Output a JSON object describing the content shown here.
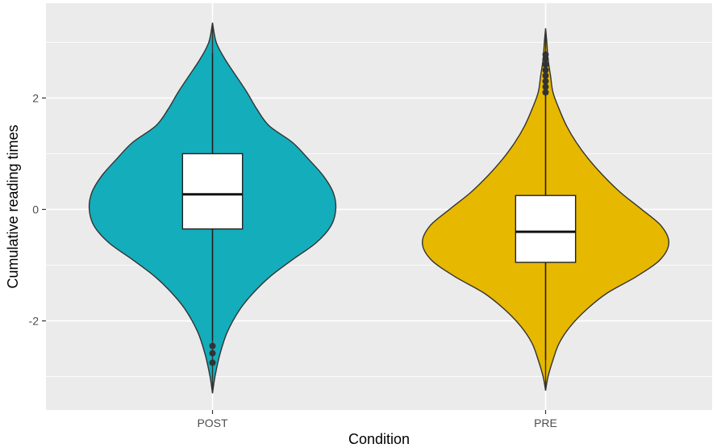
{
  "chart_data": {
    "type": "violin",
    "xlabel": "Condition",
    "ylabel": "Cumulative reading times",
    "categories": [
      "POST",
      "PRE"
    ],
    "ylim": [
      -3.6,
      3.7
    ],
    "yticks": [
      -2,
      0,
      2
    ],
    "grid": true,
    "legend": "none",
    "series": [
      {
        "category": "POST",
        "color": "#14adbb",
        "box": {
          "q1": -0.35,
          "median": 0.27,
          "q3": 1.0,
          "whisker_low": -2.35,
          "whisker_high": 2.8
        },
        "outliers": [
          -2.45,
          -2.58,
          -2.75
        ],
        "density": [
          [
            -3.3,
            0.0
          ],
          [
            -3.0,
            0.02
          ],
          [
            -2.6,
            0.06
          ],
          [
            -2.2,
            0.12
          ],
          [
            -1.8,
            0.22
          ],
          [
            -1.5,
            0.33
          ],
          [
            -1.2,
            0.47
          ],
          [
            -0.9,
            0.65
          ],
          [
            -0.6,
            0.84
          ],
          [
            -0.3,
            0.96
          ],
          [
            0.0,
            1.0
          ],
          [
            0.3,
            0.98
          ],
          [
            0.6,
            0.9
          ],
          [
            0.9,
            0.78
          ],
          [
            1.2,
            0.65
          ],
          [
            1.5,
            0.46
          ],
          [
            1.8,
            0.36
          ],
          [
            2.1,
            0.28
          ],
          [
            2.4,
            0.19
          ],
          [
            2.7,
            0.1
          ],
          [
            3.0,
            0.03
          ],
          [
            3.35,
            0.0
          ]
        ]
      },
      {
        "category": "PRE",
        "color": "#e7b800",
        "box": {
          "q1": -0.95,
          "median": -0.4,
          "q3": 0.25,
          "whisker_low": -2.7,
          "whisker_high": 2.05
        },
        "outliers": [
          2.1,
          2.2,
          2.3,
          2.4,
          2.5,
          2.6,
          2.7,
          2.78
        ],
        "density": [
          [
            -3.25,
            0.0
          ],
          [
            -3.0,
            0.02
          ],
          [
            -2.7,
            0.06
          ],
          [
            -2.4,
            0.11
          ],
          [
            -2.1,
            0.2
          ],
          [
            -1.8,
            0.33
          ],
          [
            -1.5,
            0.5
          ],
          [
            -1.2,
            0.74
          ],
          [
            -0.9,
            0.93
          ],
          [
            -0.6,
            1.0
          ],
          [
            -0.3,
            0.94
          ],
          [
            0.0,
            0.78
          ],
          [
            0.3,
            0.61
          ],
          [
            0.6,
            0.47
          ],
          [
            0.9,
            0.35
          ],
          [
            1.2,
            0.25
          ],
          [
            1.5,
            0.17
          ],
          [
            1.8,
            0.11
          ],
          [
            2.1,
            0.06
          ],
          [
            2.4,
            0.04
          ],
          [
            2.7,
            0.02
          ],
          [
            3.0,
            0.01
          ],
          [
            3.25,
            0.0
          ]
        ]
      }
    ]
  }
}
